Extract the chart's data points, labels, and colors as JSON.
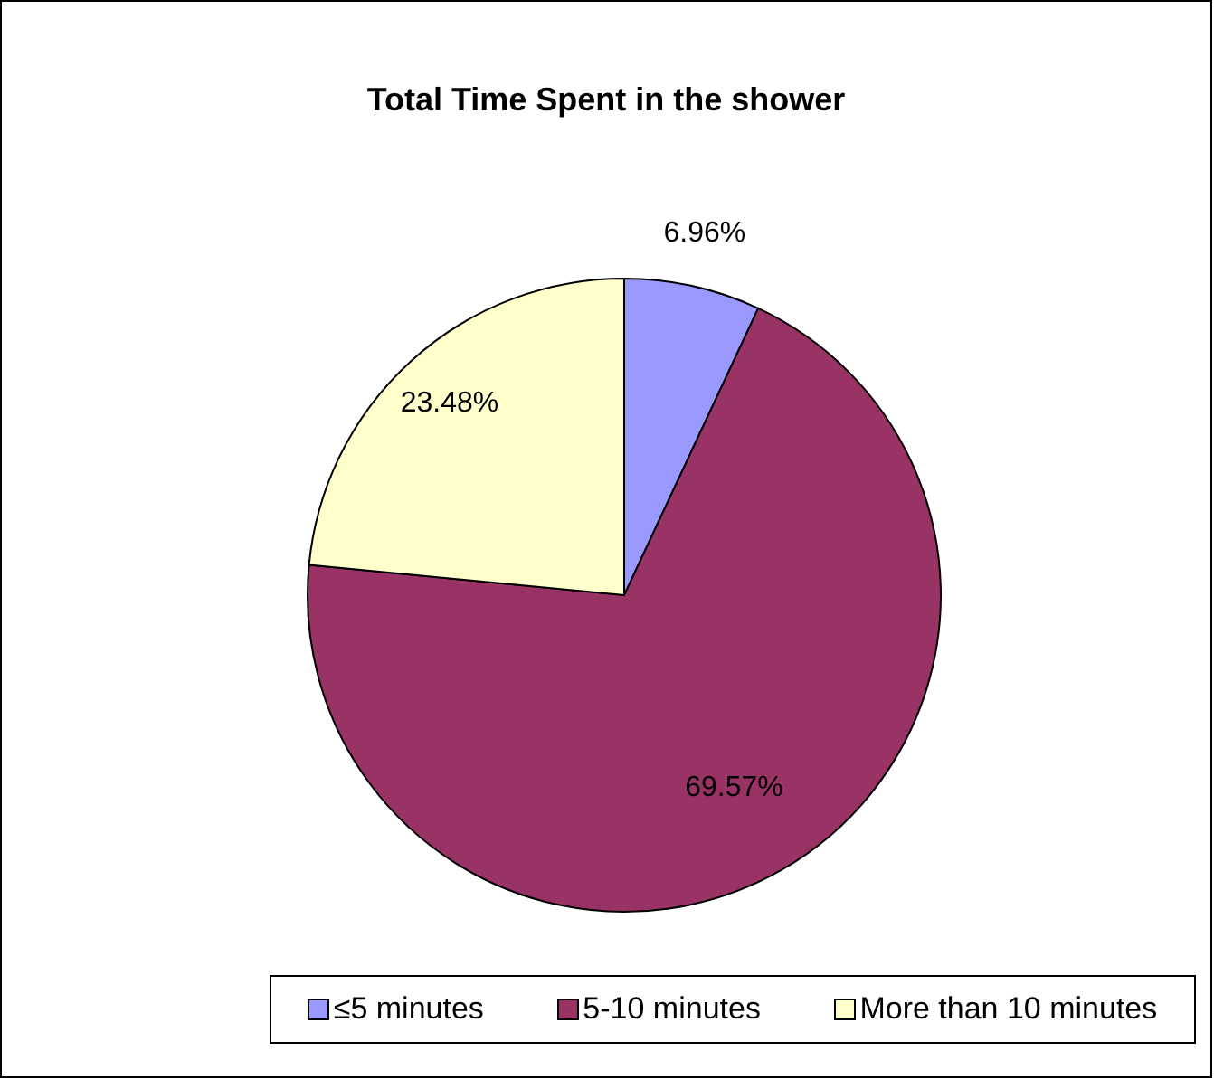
{
  "chart_data": {
    "type": "pie",
    "title": "Total Time Spent in the shower",
    "categories": [
      "≤5 minutes",
      "5-10 minutes",
      "More than 10 minutes"
    ],
    "values": [
      6.96,
      69.57,
      23.48
    ],
    "colors": [
      "#9999ff",
      "#993366",
      "#ffffcc"
    ],
    "value_labels": [
      "6.96%",
      "69.57%",
      "23.48%"
    ],
    "legend": "bottom"
  }
}
